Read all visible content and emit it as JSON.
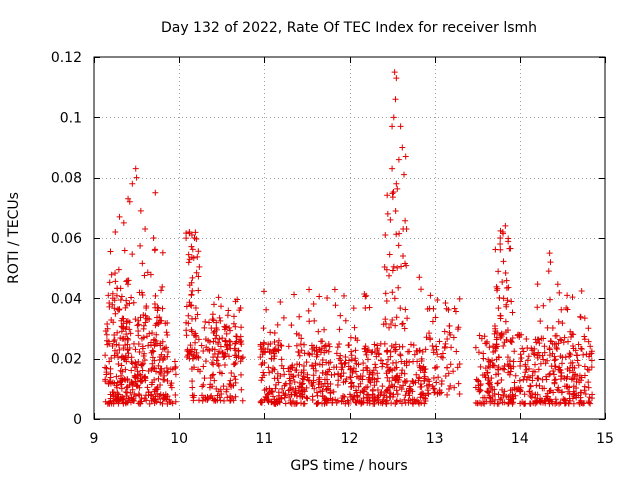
{
  "chart_data": {
    "type": "scatter",
    "title": "Day 132 of 2022, Rate Of TEC Index for receiver lsmh",
    "xlabel": "GPS time / hours",
    "ylabel": "ROTI / TECUs",
    "xlim": [
      9,
      15
    ],
    "ylim": [
      0,
      0.12
    ],
    "xticks": [
      "9",
      "10",
      "11",
      "12",
      "13",
      "14",
      "15"
    ],
    "yticks": [
      "0",
      "0.02",
      "0.04",
      "0.06",
      "0.08",
      "0.1",
      "0.12"
    ],
    "grid": true,
    "marker": "plus",
    "color": "#e00000",
    "series": [
      {
        "name": "ROTI",
        "clusters": [
          {
            "x_range": [
              9.13,
              9.87
            ],
            "y_range": [
              0.005,
              0.032
            ],
            "count": 320
          },
          {
            "x_range": [
              9.15,
              9.85
            ],
            "y_range": [
              0.032,
              0.058
            ],
            "count": 80
          },
          {
            "x_range": [
              9.88,
              9.98
            ],
            "y_range": [
              0.005,
              0.02
            ],
            "count": 15
          },
          {
            "x_range": [
              10.08,
              10.24
            ],
            "y_range": [
              0.02,
              0.062
            ],
            "count": 60
          },
          {
            "x_range": [
              10.15,
              10.75
            ],
            "y_range": [
              0.006,
              0.035
            ],
            "count": 140
          },
          {
            "x_range": [
              10.38,
              10.75
            ],
            "y_range": [
              0.02,
              0.043
            ],
            "count": 40
          },
          {
            "x_range": [
              10.95,
              12.9
            ],
            "y_range": [
              0.005,
              0.025
            ],
            "count": 600
          },
          {
            "x_range": [
              10.95,
              12.3
            ],
            "y_range": [
              0.022,
              0.043
            ],
            "count": 60
          },
          {
            "x_range": [
              12.4,
              12.7
            ],
            "y_range": [
              0.03,
              0.08
            ],
            "count": 40
          },
          {
            "x_range": [
              12.9,
              13.3
            ],
            "y_range": [
              0.008,
              0.04
            ],
            "count": 80
          },
          {
            "x_range": [
              13.48,
              14.85
            ],
            "y_range": [
              0.005,
              0.028
            ],
            "count": 420
          },
          {
            "x_range": [
              13.7,
              13.92
            ],
            "y_range": [
              0.025,
              0.065
            ],
            "count": 50
          },
          {
            "x_range": [
              14.2,
              14.82
            ],
            "y_range": [
              0.025,
              0.045
            ],
            "count": 30
          }
        ],
        "points": [
          {
            "x": 12.53,
            "y": 0.115
          },
          {
            "x": 12.55,
            "y": 0.113
          },
          {
            "x": 12.54,
            "y": 0.106
          },
          {
            "x": 12.52,
            "y": 0.1
          },
          {
            "x": 12.5,
            "y": 0.097
          },
          {
            "x": 12.6,
            "y": 0.097
          },
          {
            "x": 12.62,
            "y": 0.09
          },
          {
            "x": 12.58,
            "y": 0.086
          },
          {
            "x": 12.66,
            "y": 0.087
          },
          {
            "x": 12.5,
            "y": 0.083
          },
          {
            "x": 12.64,
            "y": 0.081
          },
          {
            "x": 12.55,
            "y": 0.078
          },
          {
            "x": 12.45,
            "y": 0.068
          },
          {
            "x": 12.48,
            "y": 0.066
          },
          {
            "x": 12.63,
            "y": 0.063
          },
          {
            "x": 12.67,
            "y": 0.063
          },
          {
            "x": 12.42,
            "y": 0.061
          },
          {
            "x": 9.49,
            "y": 0.083
          },
          {
            "x": 9.5,
            "y": 0.08
          },
          {
            "x": 9.45,
            "y": 0.078
          },
          {
            "x": 9.72,
            "y": 0.075
          },
          {
            "x": 9.4,
            "y": 0.073
          },
          {
            "x": 9.42,
            "y": 0.072
          },
          {
            "x": 9.55,
            "y": 0.069
          },
          {
            "x": 9.3,
            "y": 0.067
          },
          {
            "x": 9.35,
            "y": 0.065
          },
          {
            "x": 9.6,
            "y": 0.063
          },
          {
            "x": 9.25,
            "y": 0.062
          },
          {
            "x": 9.7,
            "y": 0.06
          },
          {
            "x": 10.12,
            "y": 0.062
          },
          {
            "x": 10.15,
            "y": 0.061
          },
          {
            "x": 10.18,
            "y": 0.06
          },
          {
            "x": 13.83,
            "y": 0.064
          },
          {
            "x": 13.8,
            "y": 0.062
          },
          {
            "x": 13.77,
            "y": 0.06
          },
          {
            "x": 14.35,
            "y": 0.055
          },
          {
            "x": 14.36,
            "y": 0.052
          },
          {
            "x": 14.34,
            "y": 0.049
          },
          {
            "x": 12.82,
            "y": 0.047
          },
          {
            "x": 12.84,
            "y": 0.043
          },
          {
            "x": 12.95,
            "y": 0.041
          }
        ]
      }
    ]
  }
}
